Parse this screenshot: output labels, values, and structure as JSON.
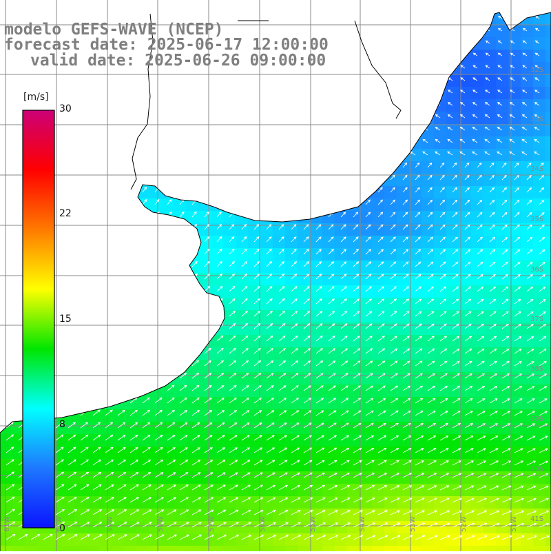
{
  "header": {
    "model": "modelo GEFS-WAVE (NCEP)",
    "forecast": "forecast date: 2025-06-17 12:00:00",
    "valid": "valid date: 2025-06-26 09:00:00"
  },
  "colorbar": {
    "unit": "[m/s]",
    "min": 0,
    "max": 30,
    "ticks": [
      {
        "value": 30,
        "label": "30"
      },
      {
        "value": 22,
        "label": "22"
      },
      {
        "value": 15,
        "label": "15"
      },
      {
        "value": 8,
        "label": "8"
      },
      {
        "value": 0,
        "label": "0"
      }
    ],
    "stops": [
      "#0a14ff",
      "#1e78ff",
      "#00ffff",
      "#00e600",
      "#ffff00",
      "#ff7a00",
      "#ff0000",
      "#cc0077"
    ]
  },
  "map": {
    "lat_labels": [
      "32S",
      "33S",
      "34S",
      "35S",
      "36S",
      "37S",
      "38S",
      "39S",
      "40S",
      "41S"
    ],
    "lon_labels": [
      "61W",
      "60W",
      "59W",
      "58W",
      "57W",
      "56W",
      "55W",
      "54W",
      "53W",
      "52W",
      "51W"
    ],
    "land_color": "#ffffff",
    "grid_color": "#888888",
    "arrow_color": "#ffffff"
  }
}
